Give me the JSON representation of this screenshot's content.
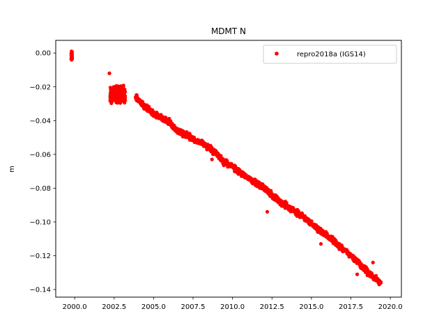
{
  "chart_data": {
    "type": "scatter",
    "title": "MDMT N",
    "xlabel": "",
    "ylabel": "m",
    "xlim": [
      1998.8,
      2020.7
    ],
    "ylim": [
      -0.1445,
      0.0075
    ],
    "xticks": [
      "2000.0",
      "2002.5",
      "2005.0",
      "2007.5",
      "2010.0",
      "2012.5",
      "2015.0",
      "2017.5",
      "2020.0"
    ],
    "yticks": [
      "0.00",
      "−0.02",
      "−0.04",
      "−0.06",
      "−0.08",
      "−0.10",
      "−0.12",
      "−0.14"
    ],
    "legend": {
      "position": "top-right",
      "entries": [
        "repro2018a (IGS14)"
      ]
    },
    "grid": false,
    "color": "#ff0000",
    "series": [
      {
        "name": "repro2018a (IGS14)",
        "x": [
          1999.8,
          1999.8,
          1999.8,
          1999.8,
          2002.2,
          2002.4,
          2002.6,
          2002.8,
          2003.0,
          2003.2,
          2003.9,
          2004.2,
          2004.6,
          2005.0,
          2005.5,
          2006.0,
          2006.5,
          2007.0,
          2007.5,
          2008.0,
          2008.5,
          2009.0,
          2009.5,
          2010.0,
          2010.5,
          2011.0,
          2011.5,
          2012.0,
          2012.5,
          2013.0,
          2013.5,
          2014.0,
          2014.5,
          2015.0,
          2015.5,
          2016.0,
          2016.5,
          2017.0,
          2017.5,
          2018.0,
          2018.5,
          2019.0,
          2019.4
        ],
        "y": [
          0.001,
          -0.001,
          -0.003,
          -0.004,
          -0.012,
          -0.022,
          -0.025,
          -0.026,
          -0.025,
          -0.028,
          -0.026,
          -0.03,
          -0.033,
          -0.036,
          -0.038,
          -0.041,
          -0.046,
          -0.048,
          -0.051,
          -0.053,
          -0.056,
          -0.06,
          -0.065,
          -0.067,
          -0.071,
          -0.074,
          -0.077,
          -0.08,
          -0.084,
          -0.088,
          -0.091,
          -0.094,
          -0.097,
          -0.101,
          -0.105,
          -0.108,
          -0.112,
          -0.116,
          -0.12,
          -0.124,
          -0.129,
          -0.133,
          -0.136
        ]
      }
    ]
  }
}
